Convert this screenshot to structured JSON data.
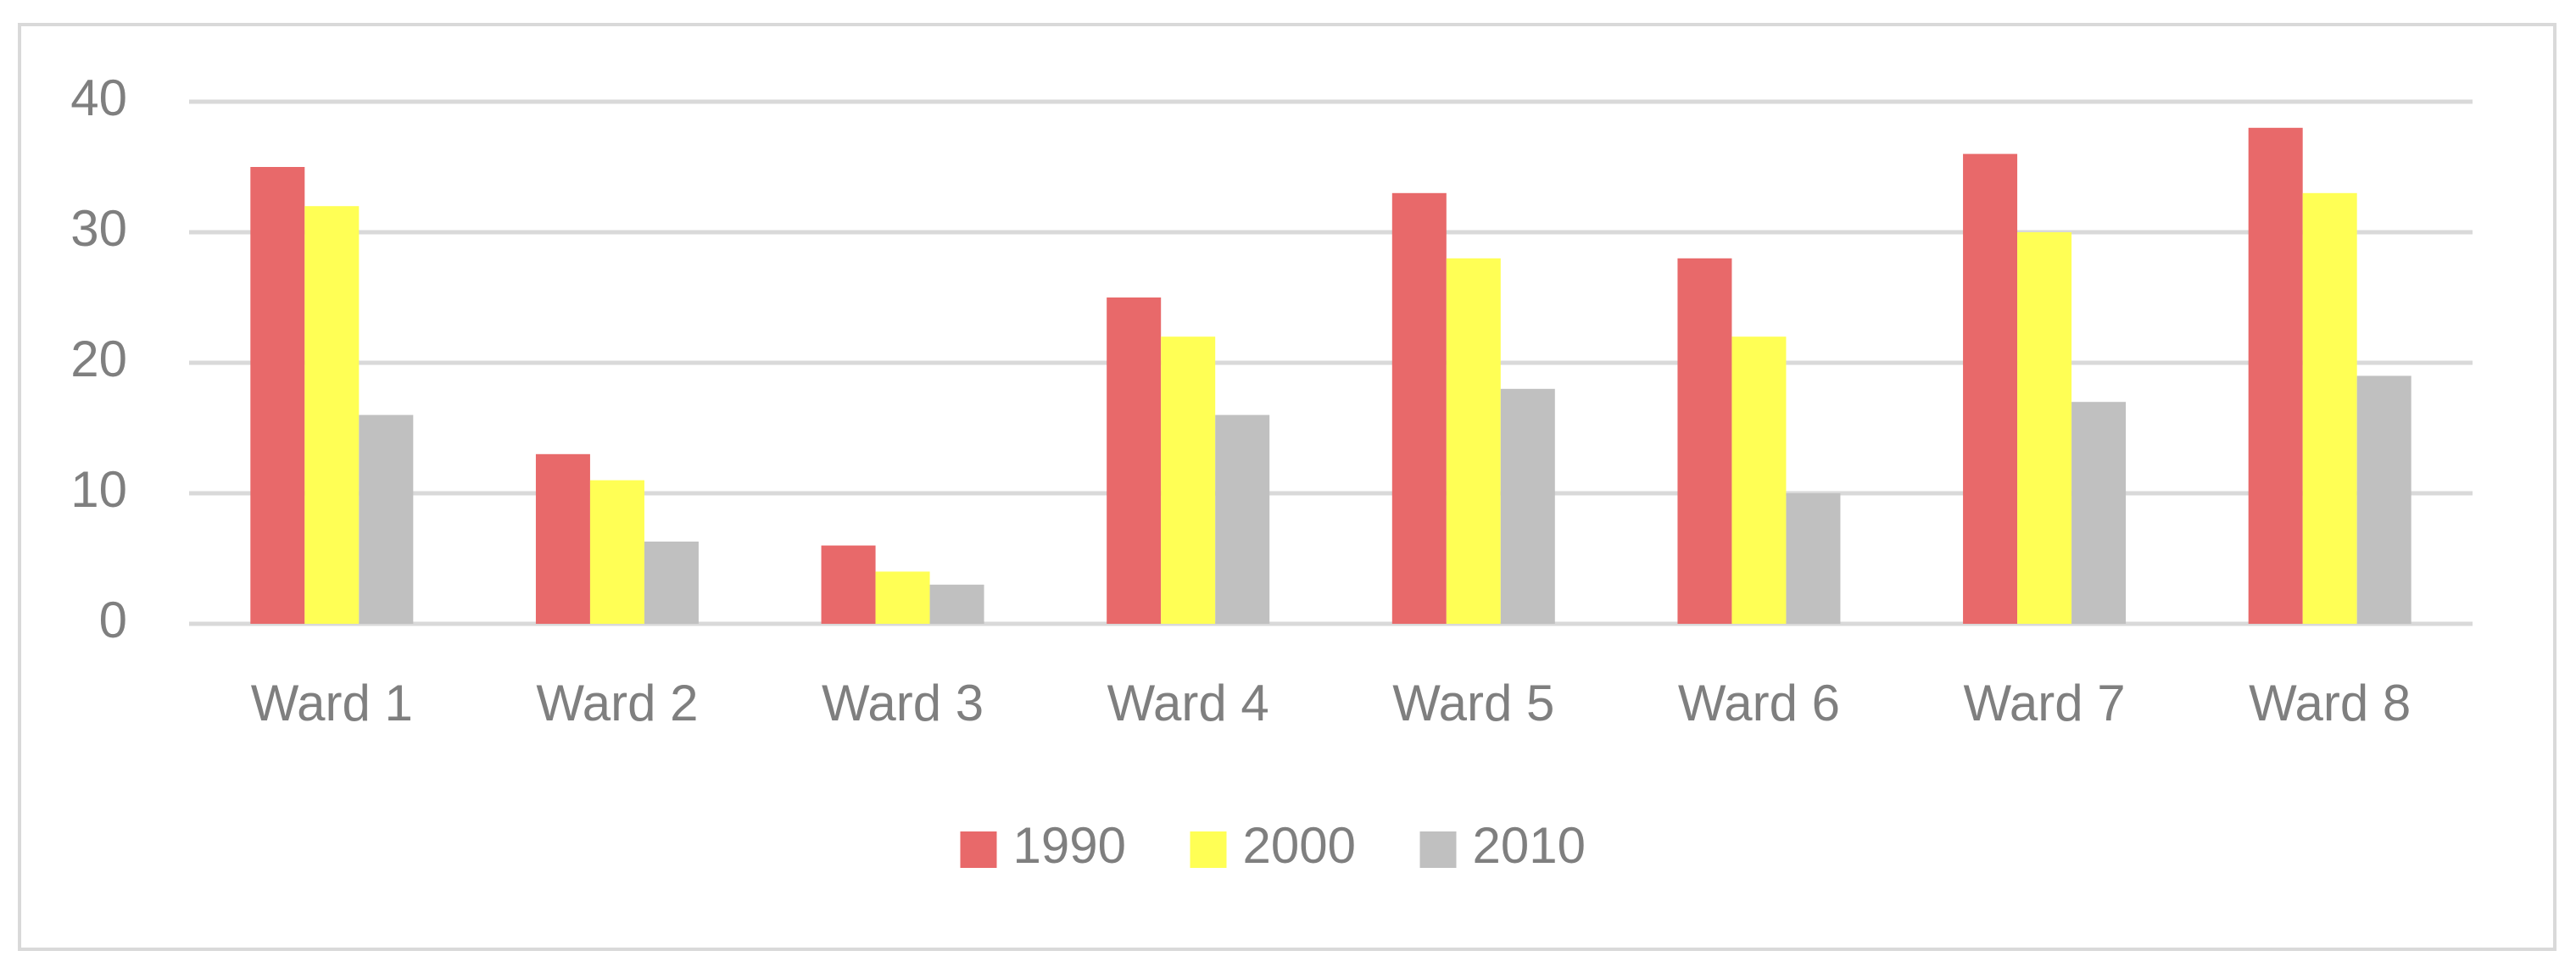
{
  "chart_data": {
    "type": "bar",
    "categories": [
      "Ward 1",
      "Ward 2",
      "Ward 3",
      "Ward 4",
      "Ward 5",
      "Ward 6",
      "Ward 7",
      "Ward 8"
    ],
    "series": [
      {
        "name": "1990",
        "color": "#e8696a",
        "values": [
          35,
          13,
          6,
          25,
          33,
          28,
          36,
          38
        ]
      },
      {
        "name": "2000",
        "color": "#ffff55",
        "values": [
          32,
          11,
          4,
          22,
          28,
          22,
          30,
          33
        ]
      },
      {
        "name": "2010",
        "color": "#c0c0c0",
        "values": [
          16,
          6.3,
          3,
          16,
          18,
          10,
          17,
          19
        ]
      }
    ],
    "ylim": [
      0,
      40
    ],
    "yticks": [
      0,
      10,
      20,
      30,
      40
    ],
    "grid": true,
    "legend": "bottom"
  }
}
